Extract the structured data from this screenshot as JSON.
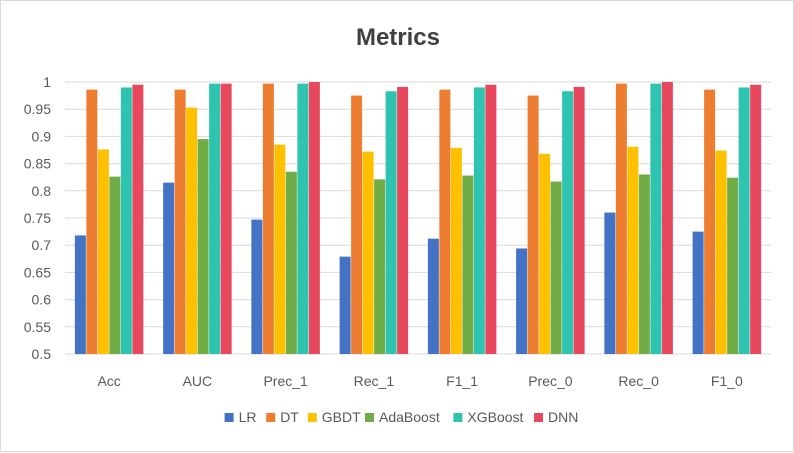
{
  "chart_data": {
    "type": "bar",
    "title": "Metrics",
    "xlabel": "",
    "ylabel": "",
    "ylim": [
      0.5,
      1
    ],
    "yticks": [
      "0.5",
      "0.55",
      "0.6",
      "0.65",
      "0.7",
      "0.75",
      "0.8",
      "0.85",
      "0.9",
      "0.95",
      "1"
    ],
    "grid": true,
    "legend_position": "bottom",
    "categories": [
      "Acc",
      "AUC",
      "Prec_1",
      "Rec_1",
      "F1_1",
      "Prec_0",
      "Rec_0",
      "F1_0"
    ],
    "series": [
      {
        "name": "LR",
        "color": "#4472c4",
        "values": [
          0.718,
          0.815,
          0.747,
          0.679,
          0.712,
          0.694,
          0.76,
          0.725
        ]
      },
      {
        "name": "DT",
        "color": "#ed7d31",
        "values": [
          0.986,
          0.986,
          0.997,
          0.975,
          0.986,
          0.975,
          0.997,
          0.986
        ]
      },
      {
        "name": "GBDT",
        "color": "#ffc000",
        "values": [
          0.876,
          0.953,
          0.885,
          0.872,
          0.879,
          0.868,
          0.881,
          0.874
        ]
      },
      {
        "name": "AdaBoost",
        "color": "#70ad47",
        "values": [
          0.826,
          0.895,
          0.835,
          0.821,
          0.828,
          0.817,
          0.83,
          0.824
        ]
      },
      {
        "name": "XGBoost",
        "color": "#2ec4b0",
        "values": [
          0.99,
          0.997,
          0.997,
          0.983,
          0.99,
          0.983,
          0.997,
          0.99
        ]
      },
      {
        "name": "DNN",
        "color": "#e8485e",
        "values": [
          0.995,
          0.997,
          1.0,
          0.991,
          0.995,
          0.991,
          1.0,
          0.995
        ]
      }
    ]
  }
}
